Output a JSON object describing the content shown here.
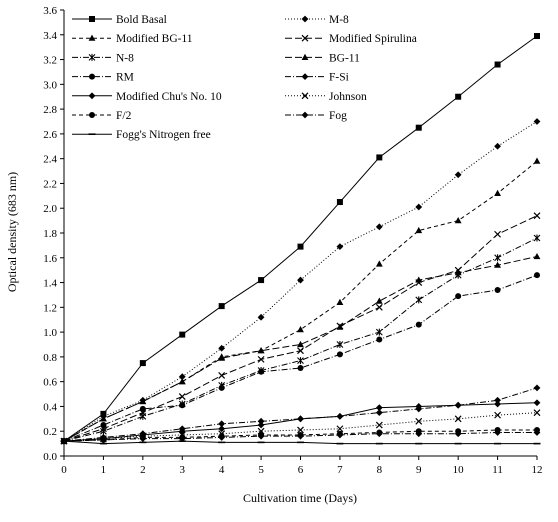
{
  "chart_data": {
    "type": "line",
    "xlabel": "Cultivation time (Days)",
    "ylabel": "Optical density (683 nm)",
    "x": [
      0,
      1,
      2,
      3,
      4,
      5,
      6,
      7,
      8,
      9,
      10,
      11,
      12
    ],
    "xlim": [
      0,
      12
    ],
    "ylim": [
      0,
      3.6
    ],
    "x_ticks": [
      "0",
      "1",
      "2",
      "3",
      "4",
      "5",
      "6",
      "7",
      "8",
      "9",
      "10",
      "11",
      "12"
    ],
    "y_ticks": [
      "0.0",
      "0.2",
      "0.4",
      "0.6",
      "0.8",
      "1.0",
      "1.2",
      "1.4",
      "1.6",
      "1.8",
      "2.0",
      "2.2",
      "2.4",
      "2.6",
      "2.8",
      "3.0",
      "3.2",
      "3.4",
      "3.6"
    ],
    "grid": false,
    "legend_position": "top-left",
    "series": [
      {
        "name": "Bold Basal",
        "marker": "square",
        "dash": "solid",
        "values": [
          0.12,
          0.34,
          0.75,
          0.98,
          1.21,
          1.42,
          1.69,
          2.05,
          2.41,
          2.65,
          2.9,
          3.16,
          3.39
        ]
      },
      {
        "name": "M-8",
        "marker": "diamond",
        "dash": "dotted",
        "values": [
          0.12,
          0.32,
          0.45,
          0.64,
          0.87,
          1.12,
          1.42,
          1.69,
          1.85,
          2.01,
          2.27,
          2.5,
          2.7
        ]
      },
      {
        "name": "Modified BG-11",
        "marker": "triangle",
        "dash": "dashed",
        "values": [
          0.12,
          0.3,
          0.44,
          0.6,
          0.8,
          0.85,
          1.02,
          1.24,
          1.55,
          1.82,
          1.9,
          2.12,
          2.38
        ]
      },
      {
        "name": "Modified Spirulina",
        "marker": "x",
        "dash": "longdash",
        "values": [
          0.12,
          0.22,
          0.35,
          0.48,
          0.65,
          0.78,
          0.85,
          1.05,
          1.2,
          1.4,
          1.5,
          1.79,
          1.94
        ]
      },
      {
        "name": "N-8",
        "marker": "asterisk",
        "dash": "dashdot",
        "values": [
          0.12,
          0.2,
          0.32,
          0.42,
          0.57,
          0.69,
          0.77,
          0.9,
          1.0,
          1.26,
          1.46,
          1.6,
          1.76
        ]
      },
      {
        "name": "BG-11",
        "marker": "triangle",
        "dash": "longdash",
        "values": [
          0.12,
          0.3,
          0.44,
          0.6,
          0.79,
          0.85,
          0.9,
          1.04,
          1.25,
          1.42,
          1.48,
          1.54,
          1.61
        ]
      },
      {
        "name": "RM",
        "marker": "circle",
        "dash": "dashdot",
        "values": [
          0.12,
          0.25,
          0.38,
          0.41,
          0.55,
          0.68,
          0.71,
          0.82,
          0.94,
          1.06,
          1.29,
          1.34,
          1.46
        ]
      },
      {
        "name": "F-Si",
        "marker": "diamond",
        "dash": "dashdot",
        "values": [
          0.12,
          0.15,
          0.18,
          0.22,
          0.26,
          0.28,
          0.3,
          0.32,
          0.35,
          0.38,
          0.41,
          0.45,
          0.55
        ]
      },
      {
        "name": "Modified Chu's No. 10",
        "marker": "diamond",
        "dash": "solid",
        "values": [
          0.12,
          0.14,
          0.17,
          0.2,
          0.22,
          0.25,
          0.3,
          0.32,
          0.39,
          0.4,
          0.41,
          0.42,
          0.43
        ]
      },
      {
        "name": "Johnson",
        "marker": "x",
        "dash": "dotted",
        "values": [
          0.12,
          0.14,
          0.16,
          0.17,
          0.18,
          0.2,
          0.21,
          0.22,
          0.25,
          0.28,
          0.3,
          0.33,
          0.35
        ]
      },
      {
        "name": "F/2",
        "marker": "circle",
        "dash": "dashed",
        "values": [
          0.12,
          0.13,
          0.15,
          0.15,
          0.16,
          0.17,
          0.17,
          0.18,
          0.19,
          0.2,
          0.2,
          0.21,
          0.21
        ]
      },
      {
        "name": "Fog",
        "marker": "diamond",
        "dash": "dashdot",
        "values": [
          0.12,
          0.13,
          0.14,
          0.14,
          0.15,
          0.16,
          0.16,
          0.17,
          0.18,
          0.18,
          0.18,
          0.19,
          0.19
        ]
      },
      {
        "name": "Fogg's Nitrogen free",
        "marker": "dash",
        "dash": "solid",
        "values": [
          0.12,
          0.1,
          0.11,
          0.12,
          0.11,
          0.11,
          0.11,
          0.1,
          0.1,
          0.1,
          0.1,
          0.1,
          0.1
        ]
      }
    ]
  }
}
